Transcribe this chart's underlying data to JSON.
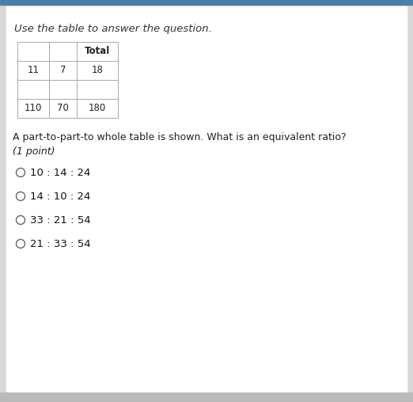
{
  "title": "Use the table to answer the question.",
  "cell_data": [
    [
      "",
      "",
      "Total"
    ],
    [
      "11",
      "7",
      "18"
    ],
    [
      "",
      "",
      ""
    ],
    [
      "110",
      "70",
      "180"
    ]
  ],
  "question_text": "A part-to-part-to whole table is shown. What is an equivalent ratio?",
  "point_text": "(1 point)",
  "options": [
    "10 : 14 : 24",
    "14 : 10 : 24",
    "33 : 21 : 54",
    "21 : 33 : 54"
  ],
  "bg_color": "#d8d8d8",
  "card_color": "#f2f2f2",
  "top_bar_color": "#4a7faa",
  "title_color": "#333333",
  "text_color": "#222222",
  "table_border_color": "#aaaaaa",
  "option_text_color": "#111111"
}
